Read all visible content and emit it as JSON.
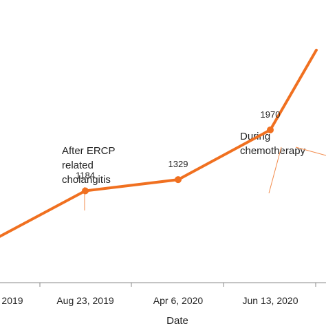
{
  "chart_data": {
    "type": "line",
    "title": "",
    "xlabel": "Date",
    "ylabel": "",
    "grid": false,
    "legend": "none",
    "colors": {
      "series": "#f07020",
      "axis": "#888888",
      "annotation_line": "#f28a4a",
      "text": "#222222"
    },
    "categories": [
      "2019",
      "Aug 23, 2019",
      "Apr 6, 2020",
      "Jun 13, 2020",
      ""
    ],
    "series": [
      {
        "values": [
          560,
          1184,
          1329,
          1970,
          3000
        ],
        "data_labels": [
          "",
          "1184",
          "1329",
          "1970",
          ""
        ]
      }
    ],
    "ylim": [
      0,
      4000
    ],
    "annotations": [
      {
        "lines": [
          "After ERCP",
          "related",
          "cholangitis"
        ],
        "category": "Aug 23, 2019"
      },
      {
        "lines": [
          "During",
          "chemotherapy"
        ],
        "category": "Jun 13, 2020"
      }
    ]
  }
}
